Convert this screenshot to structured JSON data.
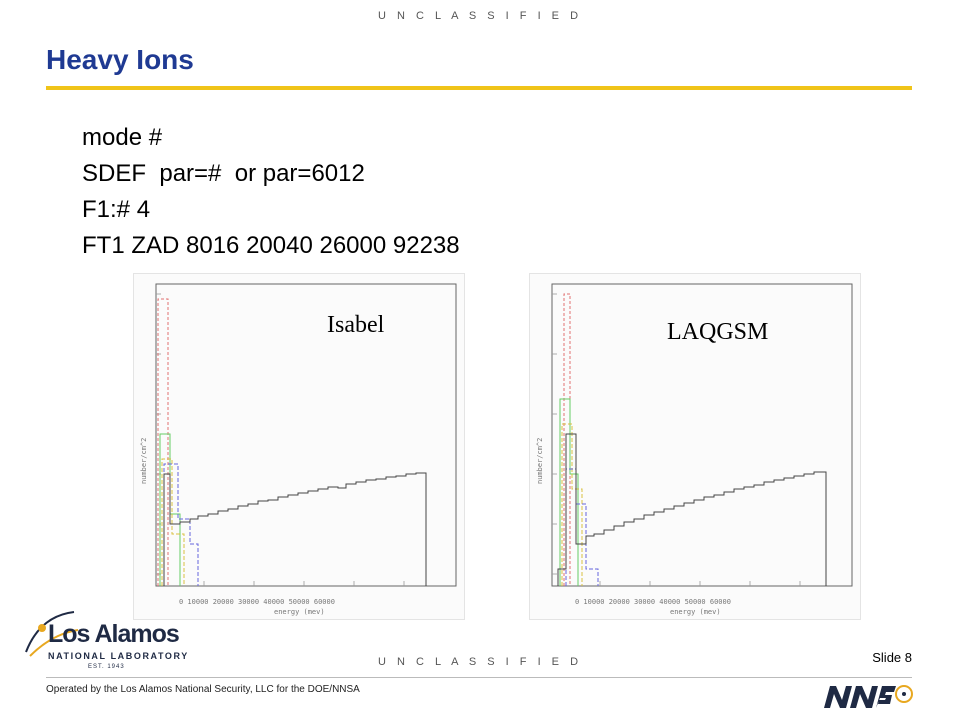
{
  "classification": "U N C L A S S I F I E D",
  "title": "Heavy Ions",
  "lines": [
    "mode #",
    "SDEF  par=#  or par=6012",
    "F1:# 4",
    "FT1 ZAD 8016 20040 26000 92238"
  ],
  "plots": {
    "left_label": "Isabel",
    "right_label": "LAQGSM"
  },
  "footer": {
    "operated_by": "Operated by the Los Alamos National Security, LLC for the DOE/NNSA",
    "slide": "Slide 8"
  },
  "logo": {
    "name": "Los Alamos",
    "subtitle": "NATIONAL LABORATORY",
    "est": "EST. 1943"
  },
  "colors": {
    "title": "#1f3a93",
    "rule": "#f0c419"
  }
}
